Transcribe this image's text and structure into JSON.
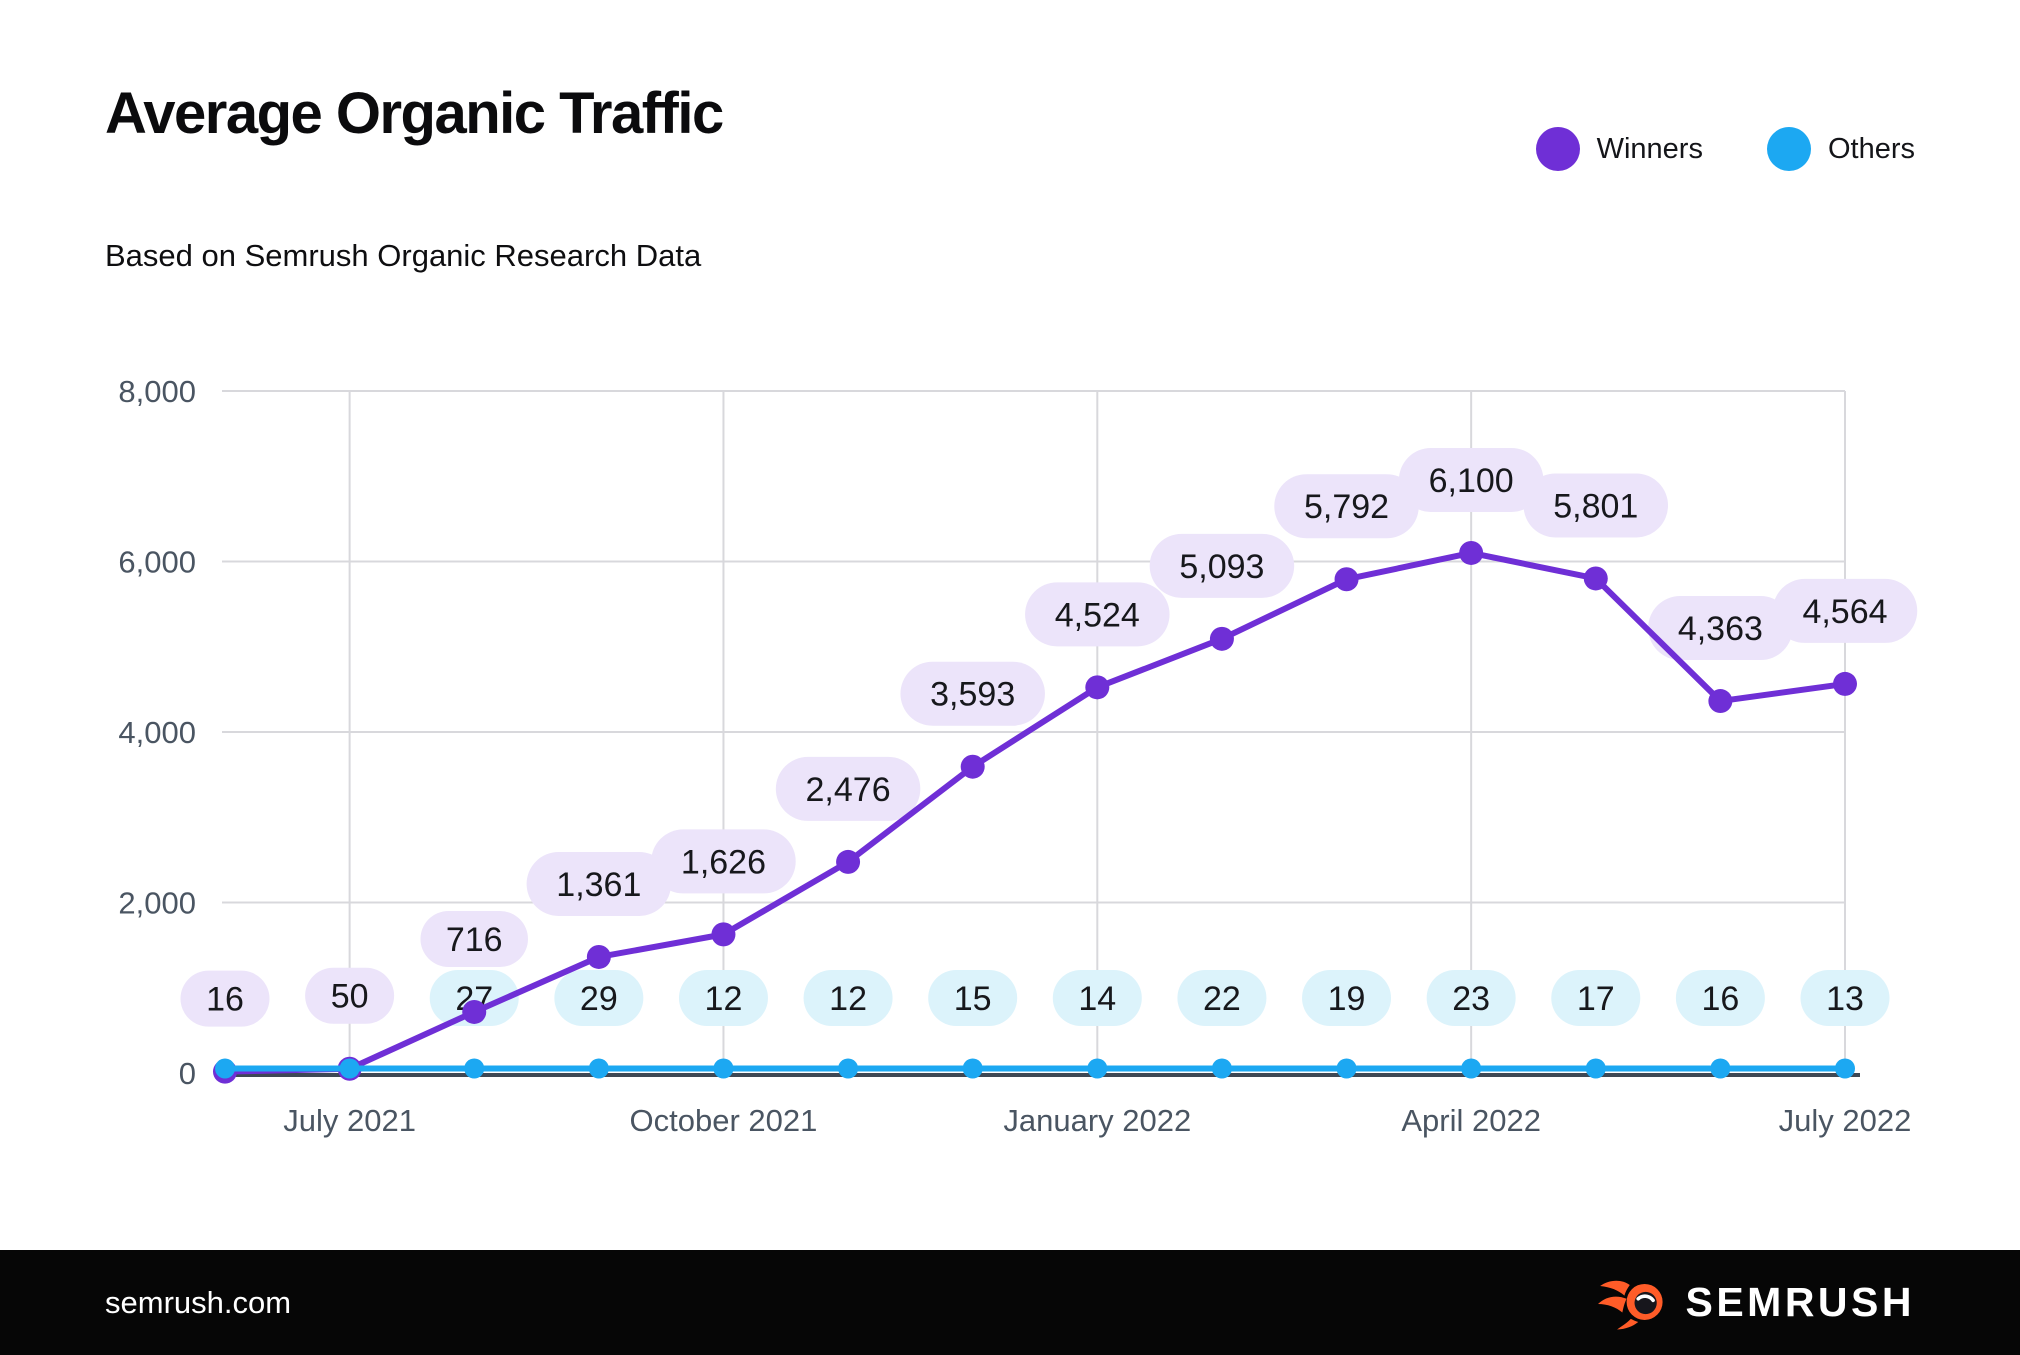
{
  "page": {
    "title": "Average Organic Traffic",
    "subtitle": "Based on Semrush Organic Research Data"
  },
  "legend": {
    "items": [
      {
        "label": "Winners",
        "color": "#6F2FD6"
      },
      {
        "label": "Others",
        "color": "#1CA8F2"
      }
    ]
  },
  "footer": {
    "site_url": "semrush.com",
    "brand_name": "SEMRUSH",
    "brand_color": "#FF5C28"
  },
  "chart_data": {
    "type": "line",
    "title": "Average Organic Traffic",
    "subtitle": "Based on Semrush Organic Research Data",
    "points_count": 14,
    "grid": true,
    "legend_position": "top-right",
    "y_axis": {
      "min": 0,
      "max": 8000,
      "ticks": [
        {
          "value": 0,
          "label": "0"
        },
        {
          "value": 2000,
          "label": "2,000"
        },
        {
          "value": 4000,
          "label": "4,000"
        },
        {
          "value": 6000,
          "label": "6,000"
        },
        {
          "value": 8000,
          "label": "8,000"
        }
      ]
    },
    "x_axis": {
      "ticks": [
        {
          "point_index": 1,
          "label": "July 2021"
        },
        {
          "point_index": 4,
          "label": "October 2021"
        },
        {
          "point_index": 7,
          "label": "January 2022"
        },
        {
          "point_index": 10,
          "label": "April 2022"
        },
        {
          "point_index": 13,
          "label": "July 2022"
        }
      ]
    },
    "series": [
      {
        "name": "Winners",
        "color": "#6F2FD6",
        "bubble_color": "#ECE4FA",
        "values": [
          16,
          50,
          716,
          1361,
          1626,
          2476,
          3593,
          4524,
          5093,
          5792,
          6100,
          5801,
          4363,
          4564
        ],
        "labels": [
          "16",
          "50",
          "716",
          "1,361",
          "1,626",
          "2,476",
          "3,593",
          "4,524",
          "5,093",
          "5,792",
          "6,100",
          "5,801",
          "4,363",
          "4,564"
        ]
      },
      {
        "name": "Others",
        "color": "#1CA8F2",
        "bubble_color": "#DCF3FB",
        "values": [
          null,
          null,
          27,
          29,
          12,
          12,
          15,
          14,
          22,
          19,
          23,
          17,
          16,
          13
        ],
        "labels": [
          null,
          null,
          "27",
          "29",
          "12",
          "12",
          "15",
          "14",
          "22",
          "19",
          "23",
          "17",
          "16",
          "13"
        ]
      }
    ]
  }
}
